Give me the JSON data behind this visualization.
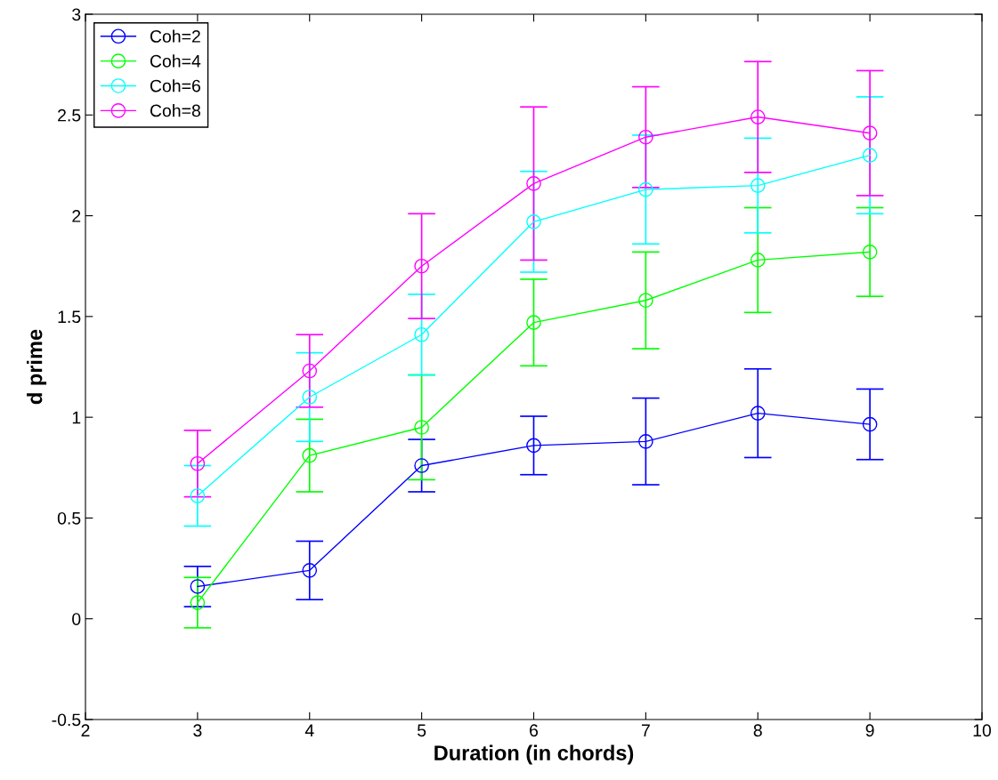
{
  "chart_data": {
    "type": "line",
    "xlabel": "Duration (in chords)",
    "ylabel": "d prime",
    "x": [
      3,
      4,
      5,
      6,
      7,
      8,
      9
    ],
    "series": [
      {
        "name": "Coh=2",
        "color": "#0000ff",
        "values": [
          0.16,
          0.24,
          0.76,
          0.86,
          0.88,
          1.02,
          0.965
        ],
        "errors": [
          0.1,
          0.145,
          0.13,
          0.145,
          0.215,
          0.22,
          0.175
        ]
      },
      {
        "name": "Coh=4",
        "color": "#00ff00",
        "values": [
          0.08,
          0.81,
          0.95,
          1.47,
          1.58,
          1.78,
          1.82
        ],
        "errors": [
          0.125,
          0.18,
          0.26,
          0.215,
          0.24,
          0.26,
          0.22
        ]
      },
      {
        "name": "Coh=6",
        "color": "#00ffff",
        "values": [
          0.61,
          1.1,
          1.41,
          1.97,
          2.13,
          2.15,
          2.3
        ],
        "errors": [
          0.15,
          0.22,
          0.2,
          0.25,
          0.27,
          0.235,
          0.29
        ]
      },
      {
        "name": "Coh=8",
        "color": "#ff00ff",
        "values": [
          0.77,
          1.23,
          1.75,
          2.16,
          2.39,
          2.49,
          2.41
        ],
        "errors": [
          0.165,
          0.18,
          0.26,
          0.38,
          0.25,
          0.275,
          0.31
        ]
      }
    ],
    "xlim": [
      2,
      10
    ],
    "xticks": [
      2,
      3,
      4,
      5,
      6,
      7,
      8,
      9,
      10
    ],
    "ylim": [
      -0.5,
      3
    ],
    "yticks": [
      -0.5,
      0,
      0.5,
      1,
      1.5,
      2,
      2.5,
      3
    ],
    "marker": "circle",
    "line_style": "solid",
    "grid": false,
    "legend": "top left"
  }
}
